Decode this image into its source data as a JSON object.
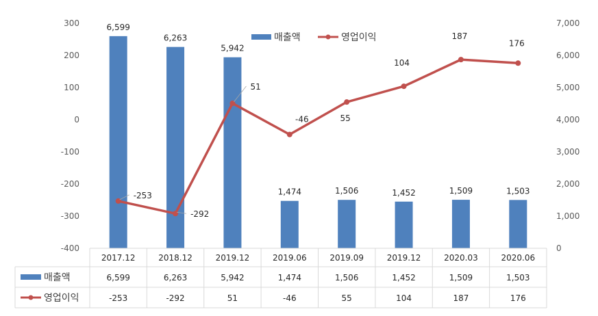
{
  "chart_data": {
    "type": "bar+line",
    "categories": [
      "2017.12",
      "2018.12",
      "2019.12",
      "2019.06",
      "2019.09",
      "2019.12",
      "2020.03",
      "2020.06"
    ],
    "series": [
      {
        "name": "매출액",
        "type": "bar",
        "axis": "right",
        "color": "#4F81BD",
        "values": [
          6599,
          6263,
          5942,
          1474,
          1506,
          1452,
          1509,
          1503
        ],
        "labels": [
          "6,599",
          "6,263",
          "5,942",
          "1,474",
          "1,506",
          "1,452",
          "1,509",
          "1,503"
        ]
      },
      {
        "name": "영업이익",
        "type": "line",
        "axis": "left",
        "color": "#C0504D",
        "values": [
          -253,
          -292,
          51,
          -46,
          55,
          104,
          187,
          176
        ],
        "labels": [
          "-253",
          "-292",
          "51",
          "-46",
          "55",
          "104",
          "187",
          "176"
        ]
      }
    ],
    "left_axis": {
      "ylim": [
        -400,
        300
      ],
      "ticks": [
        "300",
        "200",
        "100",
        "0",
        "-100",
        "-200",
        "-300",
        "-400"
      ]
    },
    "right_axis": {
      "ylim": [
        0,
        7000
      ],
      "ticks": [
        "7,000",
        "6,000",
        "5,000",
        "4,000",
        "3,000",
        "2,000",
        "1,000",
        "0"
      ]
    },
    "legend": {
      "placement": "top-center"
    },
    "data_table": true
  }
}
